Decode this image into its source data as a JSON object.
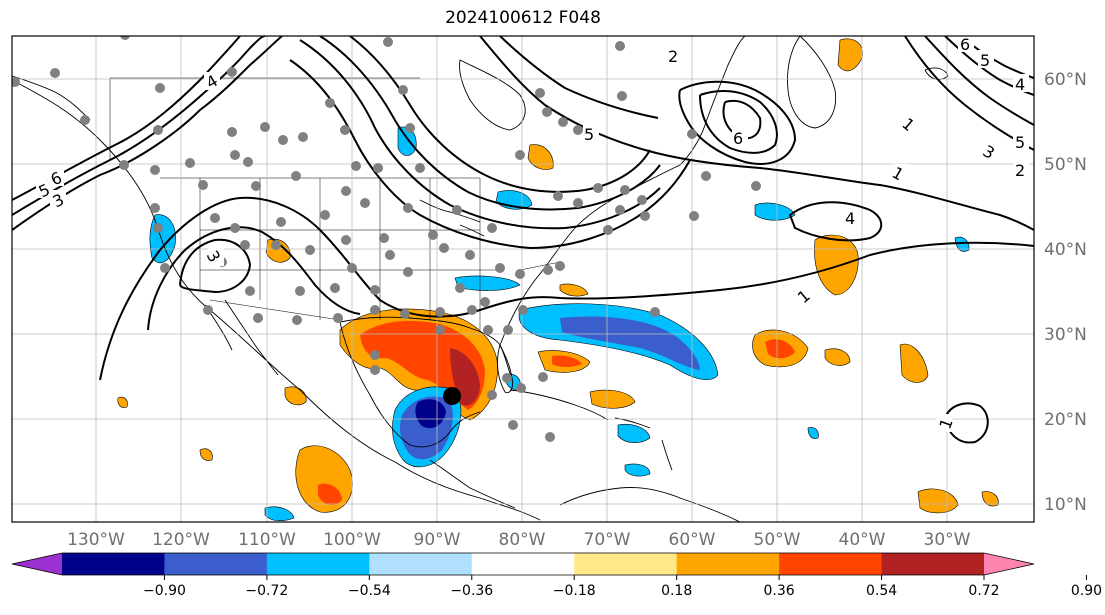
{
  "title": "2024100612 F048",
  "longitude_labels": [
    "130°W",
    "120°W",
    "110°W",
    "100°W",
    "90°W",
    "80°W",
    "70°W",
    "60°W",
    "50°W",
    "40°W",
    "30°W"
  ],
  "latitude_labels": [
    "60°N",
    "50°N",
    "40°N",
    "30°N",
    "20°N",
    "10°N"
  ],
  "colorbar": {
    "tick_labels": [
      "−0.90",
      "−0.72",
      "−0.54",
      "−0.36",
      "−0.18",
      "0.18",
      "0.36",
      "0.54",
      "0.72",
      "0.90"
    ],
    "colors": [
      "#9b30d0",
      "#00008b",
      "#3a5fcd",
      "#00bfff",
      "#b0e0ff",
      "#ffffff",
      "#ffe88a",
      "#ffa500",
      "#ff4500",
      "#b22222",
      "#ff85b0"
    ]
  },
  "contour_labels": [
    "1",
    "2",
    "3",
    "4",
    "5",
    "6"
  ],
  "map_labels": {
    "contour_1": "1",
    "contour_2": "2",
    "contour_3": "3",
    "contour_4": "4",
    "contour_5": "5",
    "contour_6": "6"
  }
}
